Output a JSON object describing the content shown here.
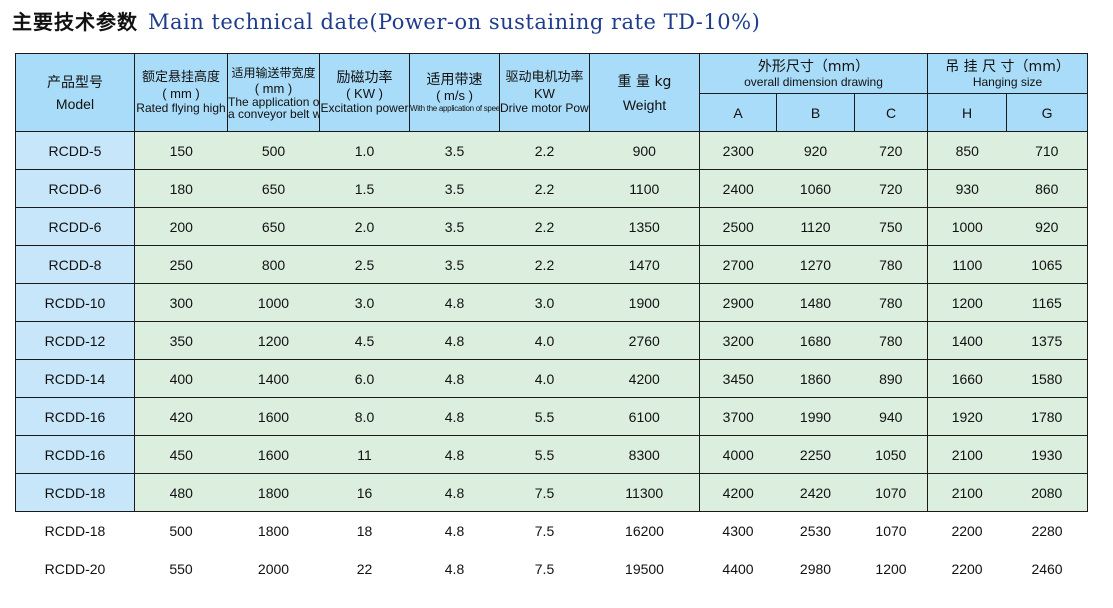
{
  "title": {
    "zh": "主要技术参数",
    "en": "Main technical date(Power-on sustaining rate TD-10%)"
  },
  "header": {
    "model": {
      "zh": "产品型号",
      "en": "Model"
    },
    "height": {
      "zh": "额定悬挂高度",
      "unit": "( mm )",
      "en": "Rated flying high"
    },
    "belt": {
      "zh": "适用输送带宽度",
      "unit": "( mm )",
      "en1": "The application of",
      "en2": "a conveyor belt width"
    },
    "excitation": {
      "zh": "励磁功率",
      "unit": "( KW )",
      "en": "Excitation power"
    },
    "speed": {
      "zh": "适用带速",
      "unit": "( m/s )",
      "en": "With the application of speed"
    },
    "motor": {
      "zh": "驱动电机功率",
      "unit": "KW",
      "en": "Drive motor Power"
    },
    "weight": {
      "zh": "重 量 kg",
      "en": "Weight"
    },
    "dimension": {
      "zh": "外形尺寸（mm）",
      "en": "overall dimension drawing",
      "a": "A",
      "b": "B",
      "c": "C"
    },
    "hanging": {
      "zh": "吊 挂 尺 寸（mm）",
      "en": "Hanging size",
      "h": "H",
      "g": "G"
    }
  },
  "rows": [
    [
      "RCDD-5",
      "150",
      "500",
      "1.0",
      "3.5",
      "2.2",
      "900",
      "2300",
      "920",
      "720",
      "850",
      "710"
    ],
    [
      "RCDD-6",
      "180",
      "650",
      "1.5",
      "3.5",
      "2.2",
      "1100",
      "2400",
      "1060",
      "720",
      "930",
      "860"
    ],
    [
      "RCDD-6",
      "200",
      "650",
      "2.0",
      "3.5",
      "2.2",
      "1350",
      "2500",
      "1120",
      "750",
      "1000",
      "920"
    ],
    [
      "RCDD-8",
      "250",
      "800",
      "2.5",
      "3.5",
      "2.2",
      "1470",
      "2700",
      "1270",
      "780",
      "1100",
      "1065"
    ],
    [
      "RCDD-10",
      "300",
      "1000",
      "3.0",
      "4.8",
      "3.0",
      "1900",
      "2900",
      "1480",
      "780",
      "1200",
      "1165"
    ],
    [
      "RCDD-12",
      "350",
      "1200",
      "4.5",
      "4.8",
      "4.0",
      "2760",
      "3200",
      "1680",
      "780",
      "1400",
      "1375"
    ],
    [
      "RCDD-14",
      "400",
      "1400",
      "6.0",
      "4.8",
      "4.0",
      "4200",
      "3450",
      "1860",
      "890",
      "1660",
      "1580"
    ],
    [
      "RCDD-16",
      "420",
      "1600",
      "8.0",
      "4.8",
      "5.5",
      "6100",
      "3700",
      "1990",
      "940",
      "1920",
      "1780"
    ],
    [
      "RCDD-16",
      "450",
      "1600",
      "11",
      "4.8",
      "5.5",
      "8300",
      "4000",
      "2250",
      "1050",
      "2100",
      "1930"
    ],
    [
      "RCDD-18",
      "480",
      "1800",
      "16",
      "4.8",
      "7.5",
      "11300",
      "4200",
      "2420",
      "1070",
      "2100",
      "2080"
    ],
    [
      "RCDD-18",
      "500",
      "1800",
      "18",
      "4.8",
      "7.5",
      "16200",
      "4300",
      "2530",
      "1070",
      "2200",
      "2280"
    ],
    [
      "RCDD-20",
      "550",
      "2000",
      "22",
      "4.8",
      "7.5",
      "19500",
      "4400",
      "2980",
      "1200",
      "2200",
      "2460"
    ]
  ]
}
